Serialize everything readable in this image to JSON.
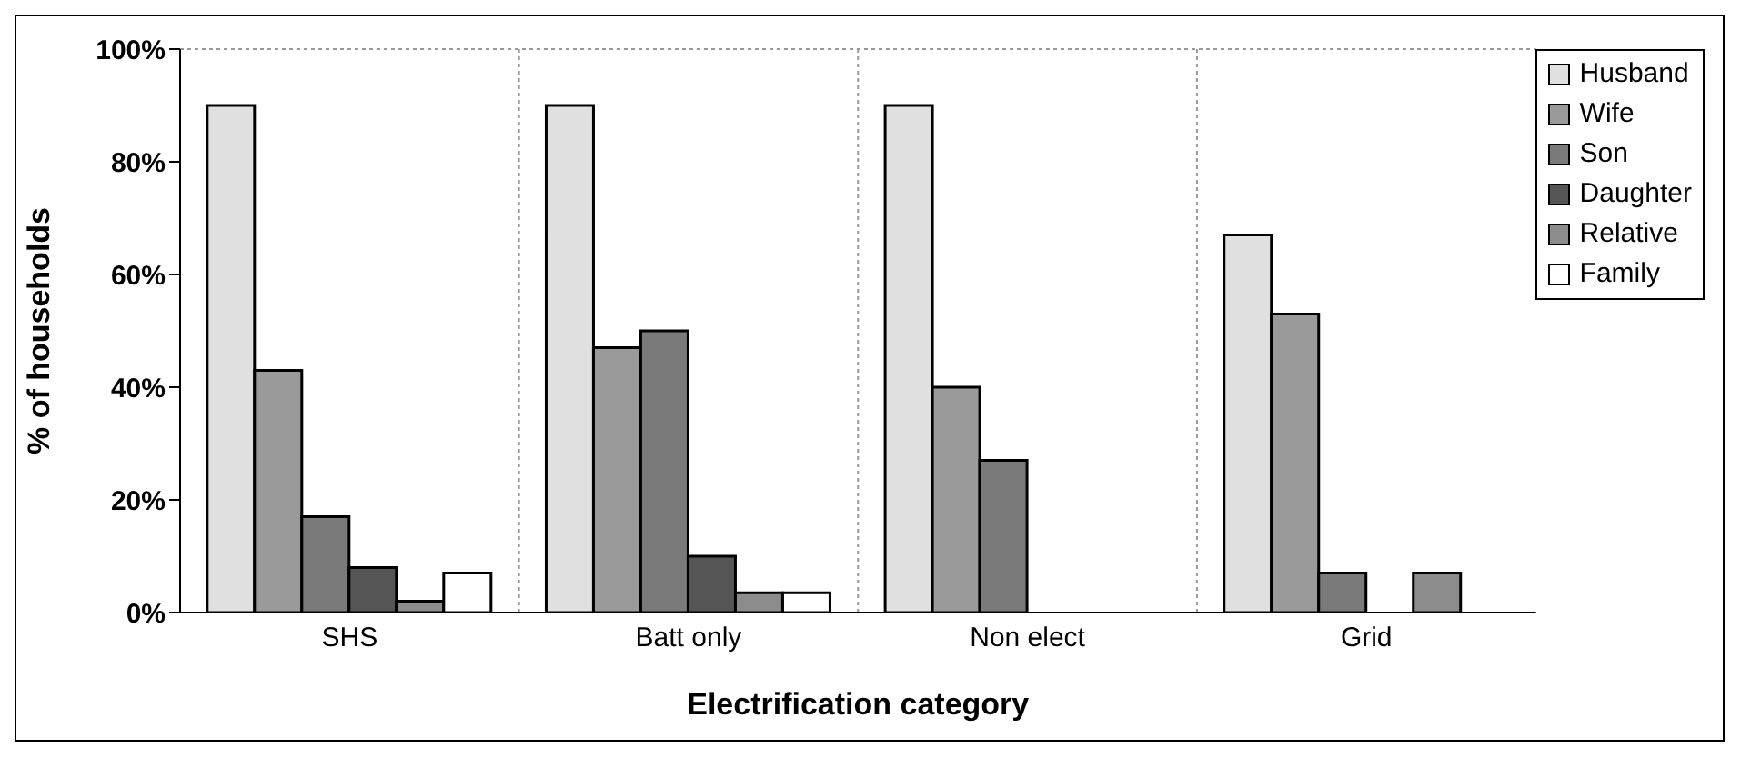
{
  "chart_data": {
    "type": "bar",
    "xlabel": "Electrification category",
    "ylabel": "% of households",
    "categories": [
      "SHS",
      "Batt only",
      "Non elect",
      "Grid"
    ],
    "series": [
      {
        "name": "Husband",
        "color": "#e0e0e0",
        "values": [
          90,
          90,
          90,
          67
        ]
      },
      {
        "name": "Wife",
        "color": "#9a9a9a",
        "values": [
          43,
          47,
          40,
          53
        ]
      },
      {
        "name": "Son",
        "color": "#7a7a7a",
        "values": [
          17,
          50,
          27,
          7
        ]
      },
      {
        "name": "Daughter",
        "color": "#555555",
        "values": [
          8,
          10,
          0,
          0
        ]
      },
      {
        "name": "Relative",
        "color": "#8c8c8c",
        "values": [
          2,
          3.5,
          0,
          7
        ]
      },
      {
        "name": "Family",
        "color": "#ffffff",
        "values": [
          7,
          3.5,
          0,
          0
        ]
      }
    ],
    "ylim": [
      0,
      100
    ],
    "yticks": [
      {
        "value": 0,
        "label": "0%"
      },
      {
        "value": 20,
        "label": "20%"
      },
      {
        "value": 40,
        "label": "40%"
      },
      {
        "value": 60,
        "label": "60%"
      },
      {
        "value": 80,
        "label": "80%"
      },
      {
        "value": 100,
        "label": "100%"
      }
    ],
    "grid": true,
    "legend": "top right"
  }
}
